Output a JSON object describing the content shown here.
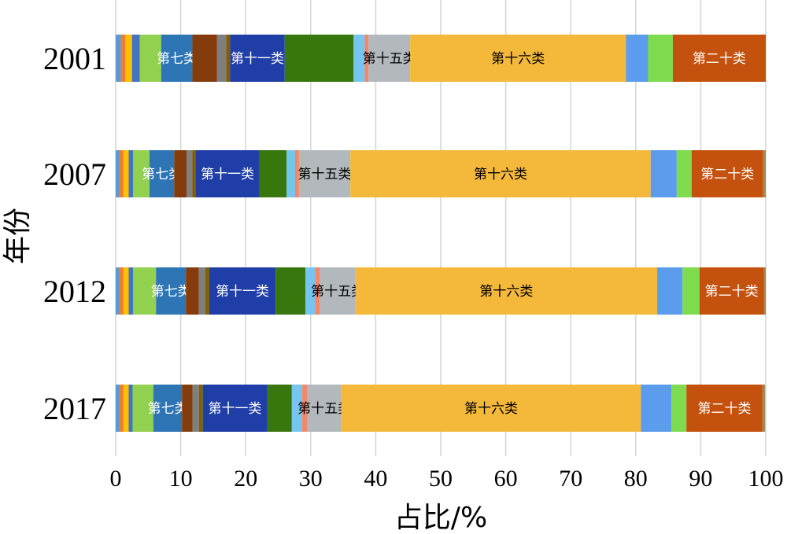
{
  "chart_data": {
    "type": "bar",
    "orientation": "horizontal",
    "stacked": true,
    "xlabel": "占比/%",
    "ylabel": "年份",
    "xlim": [
      0,
      100
    ],
    "xticks": [
      0,
      10,
      20,
      30,
      40,
      50,
      60,
      70,
      80,
      90,
      100
    ],
    "grid": true,
    "categories": [
      "2001",
      "2007",
      "2012",
      "2017"
    ],
    "series": [
      {
        "label": "",
        "color": "#5b9bd5",
        "values": [
          0.8,
          0.6,
          0.6,
          0.6
        ]
      },
      {
        "label": "",
        "color": "#ed7d31",
        "values": [
          0.7,
          0.6,
          0.6,
          0.6
        ]
      },
      {
        "label": "",
        "color": "#ffc000",
        "values": [
          1.0,
          0.8,
          0.8,
          0.8
        ]
      },
      {
        "label": "",
        "color": "#4472c4",
        "values": [
          1.2,
          0.7,
          0.7,
          0.6
        ]
      },
      {
        "label": "",
        "color": "#92d050",
        "values": [
          3.3,
          2.5,
          3.5,
          3.2
        ]
      },
      {
        "label": "第七类",
        "color": "#2e75b6",
        "values": [
          4.8,
          3.8,
          4.6,
          4.4
        ]
      },
      {
        "label": "",
        "color": "#843c0c",
        "values": [
          3.8,
          1.9,
          2.0,
          1.6
        ]
      },
      {
        "label": "",
        "color": "#7f7f7f",
        "values": [
          1.4,
          0.9,
          1.0,
          1.0
        ]
      },
      {
        "label": "",
        "color": "#806000",
        "values": [
          0.6,
          0.5,
          0.6,
          0.6
        ]
      },
      {
        "label": "第十一类",
        "color": "#203ea8",
        "values": [
          8.4,
          9.8,
          10.2,
          9.9
        ]
      },
      {
        "label": "",
        "color": "#38760e",
        "values": [
          10.6,
          4.2,
          4.6,
          3.8
        ]
      },
      {
        "label": "",
        "color": "#76c4f0",
        "values": [
          1.7,
          1.3,
          1.5,
          1.6
        ]
      },
      {
        "label": "",
        "color": "#f4866a",
        "values": [
          0.6,
          0.6,
          0.7,
          0.8
        ]
      },
      {
        "label": "第十五类",
        "color": "#b2b8bc",
        "values": [
          6.4,
          7.9,
          5.5,
          5.2
        ]
      },
      {
        "label": "第十六类",
        "color": "#f4b83b",
        "values": [
          33.2,
          46.2,
          46.4,
          46.1
        ]
      },
      {
        "label": "",
        "color": "#5b9cec",
        "values": [
          3.4,
          4.0,
          3.9,
          4.7
        ]
      },
      {
        "label": "",
        "color": "#7fdb4e",
        "values": [
          3.8,
          2.3,
          2.6,
          2.3
        ]
      },
      {
        "label": "第二十类",
        "color": "#c5510e",
        "values": [
          14.3,
          11.0,
          9.9,
          11.7
        ]
      },
      {
        "label": "",
        "color": "#9d8a52",
        "values": [
          0.0,
          0.4,
          0.3,
          0.4
        ]
      }
    ]
  }
}
